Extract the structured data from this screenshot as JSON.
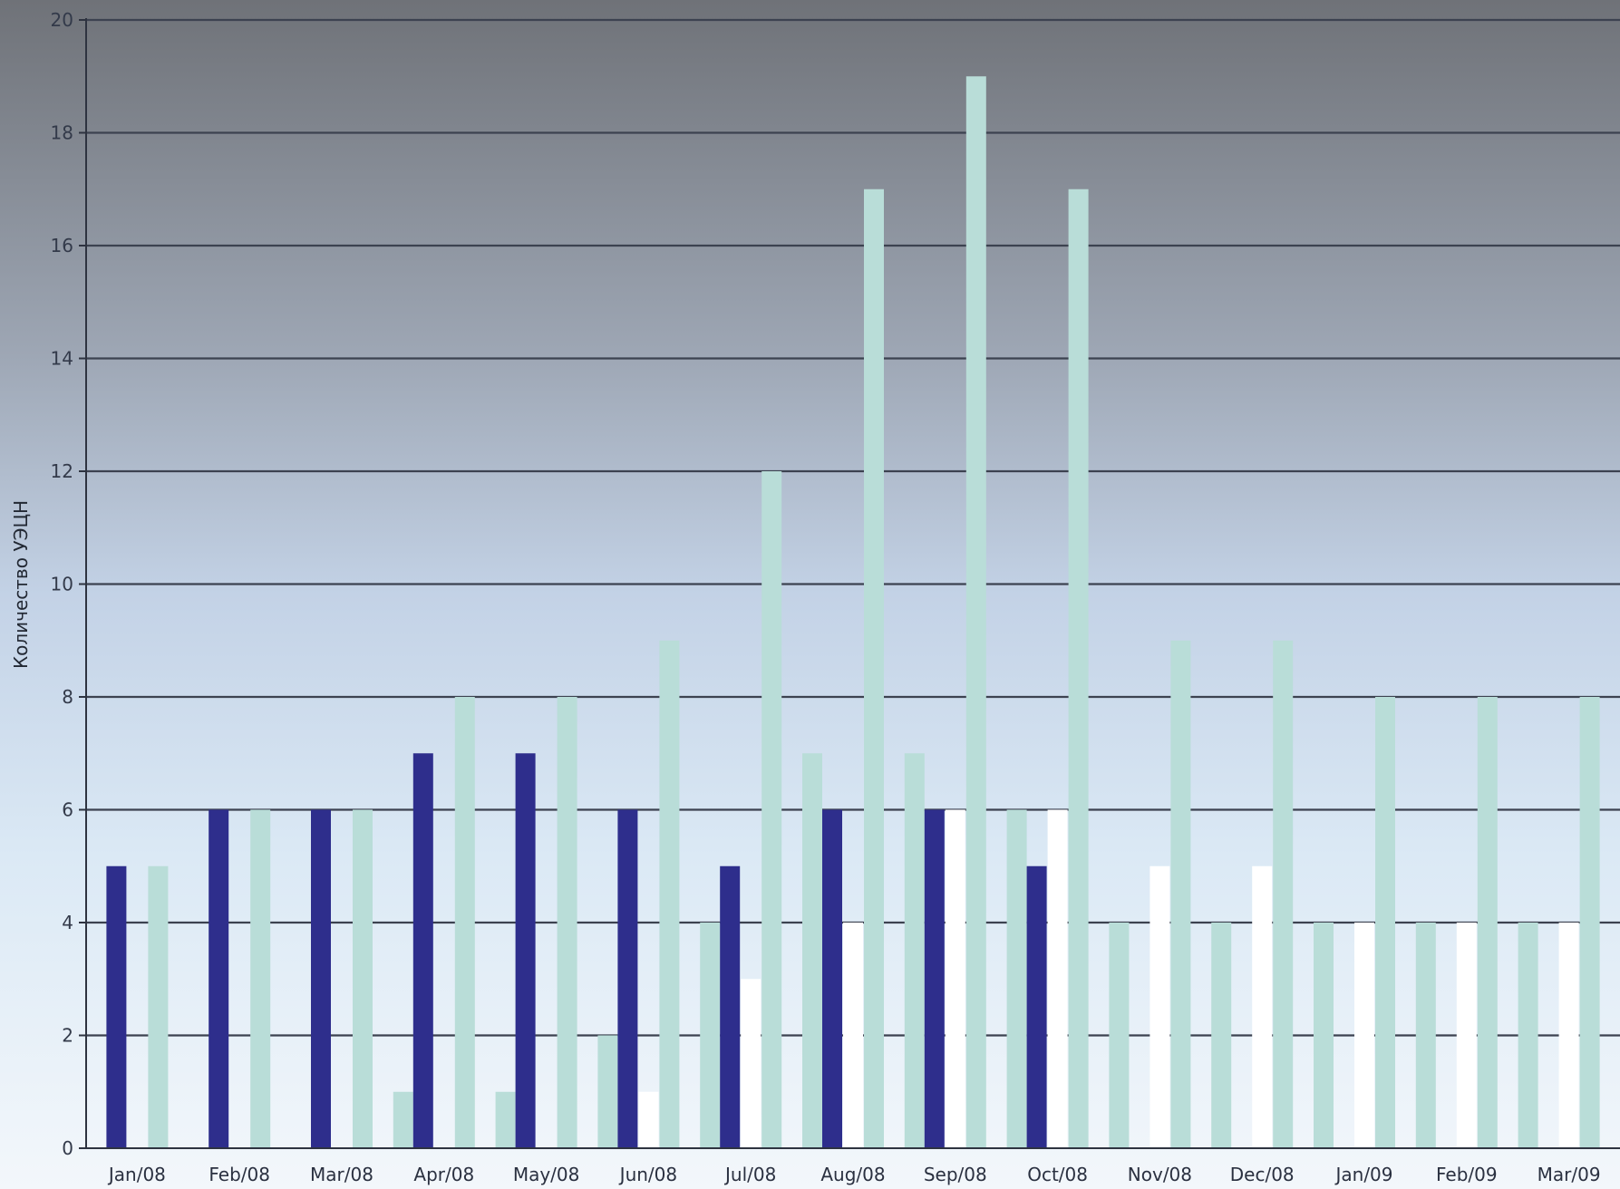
{
  "chart_data": {
    "type": "bar",
    "ylabel": "Количество УЭЦН",
    "xlabel": "",
    "ylim": [
      0,
      20
    ],
    "yticks": [
      "0",
      "2",
      "4",
      "6",
      "8",
      "10",
      "12",
      "14",
      "16",
      "18",
      "20"
    ],
    "grid": true,
    "legend": "none",
    "categories": [
      "Jan/08",
      "Feb/08",
      "Mar/08",
      "Apr/08",
      "May/08",
      "Jun/08",
      "Jul/08",
      "Aug/08",
      "Sep/08",
      "Oct/08",
      "Nov/08",
      "Dec/08",
      "Jan/09",
      "Feb/09",
      "Mar/09"
    ],
    "series": [
      {
        "color": "#b9ddd8",
        "values": [
          0,
          0,
          0,
          1,
          1,
          2,
          4,
          7,
          7,
          6,
          4,
          4,
          4,
          4,
          4
        ]
      },
      {
        "color": "#2e2e8c",
        "values": [
          5,
          6,
          6,
          7,
          7,
          6,
          5,
          6,
          6,
          5,
          0,
          0,
          0,
          0,
          0
        ]
      },
      {
        "color": "#ffffff",
        "values": [
          0,
          0,
          0,
          0,
          0,
          1,
          3,
          4,
          6,
          6,
          5,
          5,
          4,
          4,
          4
        ]
      },
      {
        "color": "#b9ddd8",
        "values": [
          5,
          6,
          6,
          8,
          8,
          9,
          12,
          17,
          19,
          17,
          9,
          9,
          8,
          8,
          8
        ]
      }
    ]
  }
}
